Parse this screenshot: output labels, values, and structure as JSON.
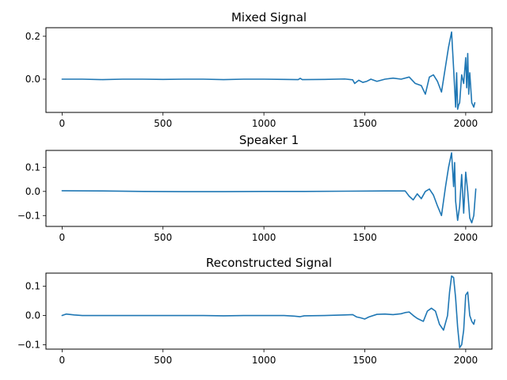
{
  "chart_data": [
    {
      "type": "line",
      "title": "Mixed Signal",
      "xlim": [
        -80,
        2130
      ],
      "ylim": [
        -0.155,
        0.24
      ],
      "xticks": [
        0,
        500,
        1000,
        1500,
        2000
      ],
      "yticks": [
        0.0,
        0.2
      ],
      "ytick_labels": [
        "0.0",
        "0.2"
      ],
      "color": "#1f77b4",
      "x": [
        0,
        100,
        200,
        300,
        400,
        500,
        600,
        700,
        800,
        900,
        1000,
        1100,
        1170,
        1180,
        1190,
        1300,
        1400,
        1440,
        1450,
        1470,
        1490,
        1510,
        1530,
        1560,
        1600,
        1640,
        1680,
        1720,
        1750,
        1780,
        1800,
        1820,
        1840,
        1860,
        1880,
        1900,
        1915,
        1930,
        1940,
        1950,
        1955,
        1960,
        1965,
        1970,
        1980,
        1990,
        2000,
        2005,
        2010,
        2015,
        2020,
        2030,
        2040,
        2045
      ],
      "values": [
        0.0,
        0.0,
        -0.002,
        0.0,
        0.0,
        -0.001,
        0.0,
        0.0,
        -0.002,
        0.0,
        0.0,
        -0.001,
        -0.002,
        0.004,
        -0.002,
        -0.001,
        0.001,
        -0.003,
        -0.02,
        -0.005,
        -0.015,
        -0.01,
        0.0,
        -0.01,
        0.0,
        0.005,
        0.0,
        0.01,
        -0.02,
        -0.03,
        -0.07,
        0.01,
        0.02,
        -0.01,
        -0.06,
        0.06,
        0.15,
        0.22,
        0.05,
        -0.13,
        0.03,
        -0.14,
        -0.12,
        -0.11,
        0.02,
        -0.02,
        0.1,
        -0.04,
        0.12,
        -0.07,
        0.03,
        -0.11,
        -0.13,
        -0.11
      ]
    },
    {
      "type": "line",
      "title": "Speaker 1",
      "xlim": [
        -80,
        2130
      ],
      "ylim": [
        -0.145,
        0.17
      ],
      "xticks": [
        0,
        500,
        1000,
        1500,
        2000
      ],
      "yticks": [
        -0.1,
        0.0,
        0.1
      ],
      "ytick_labels": [
        "−0.1",
        "0.0",
        "0.1"
      ],
      "color": "#1f77b4",
      "x": [
        0,
        200,
        400,
        600,
        800,
        1000,
        1200,
        1400,
        1600,
        1700,
        1720,
        1740,
        1760,
        1780,
        1800,
        1820,
        1840,
        1860,
        1880,
        1900,
        1915,
        1930,
        1940,
        1945,
        1950,
        1960,
        1970,
        1980,
        1990,
        2000,
        2010,
        2020,
        2030,
        2040,
        2050
      ],
      "values": [
        0.003,
        0.002,
        0.0,
        -0.001,
        -0.001,
        0.0,
        0.0,
        0.001,
        0.002,
        0.002,
        -0.02,
        -0.035,
        -0.01,
        -0.03,
        0.0,
        0.01,
        -0.015,
        -0.06,
        -0.1,
        0.02,
        0.1,
        0.16,
        0.02,
        0.12,
        -0.04,
        -0.12,
        -0.06,
        0.07,
        -0.09,
        0.08,
        0.0,
        -0.11,
        -0.13,
        -0.1,
        0.01
      ]
    },
    {
      "type": "line",
      "title": "Reconstructed Signal",
      "xlim": [
        -80,
        2130
      ],
      "ylim": [
        -0.115,
        0.145
      ],
      "xticks": [
        0,
        500,
        1000,
        1500,
        2000
      ],
      "yticks": [
        -0.1,
        0.0,
        0.1
      ],
      "ytick_labels": [
        "−0.1",
        "0.0",
        "0.1"
      ],
      "color": "#1f77b4",
      "x": [
        0,
        20,
        60,
        100,
        200,
        300,
        400,
        500,
        600,
        700,
        800,
        900,
        1000,
        1100,
        1150,
        1180,
        1200,
        1300,
        1400,
        1440,
        1460,
        1480,
        1500,
        1520,
        1560,
        1600,
        1640,
        1680,
        1700,
        1720,
        1740,
        1760,
        1790,
        1810,
        1830,
        1850,
        1870,
        1890,
        1910,
        1920,
        1930,
        1940,
        1950,
        1960,
        1970,
        1980,
        1990,
        2000,
        2010,
        2020,
        2030,
        2040,
        2045
      ],
      "values": [
        0.0,
        0.005,
        0.002,
        0.0,
        0.0,
        0.0,
        0.0,
        0.0,
        0.0,
        0.0,
        -0.001,
        0.0,
        0.0,
        0.0,
        -0.002,
        -0.004,
        -0.001,
        0.0,
        0.002,
        0.003,
        -0.005,
        -0.008,
        -0.012,
        -0.005,
        0.004,
        0.005,
        0.003,
        0.006,
        0.01,
        0.012,
        0.0,
        -0.01,
        -0.02,
        0.015,
        0.025,
        0.015,
        -0.03,
        -0.05,
        0.0,
        0.08,
        0.135,
        0.13,
        0.06,
        -0.04,
        -0.11,
        -0.1,
        -0.05,
        0.07,
        0.08,
        0.0,
        -0.02,
        -0.03,
        -0.015
      ]
    }
  ]
}
